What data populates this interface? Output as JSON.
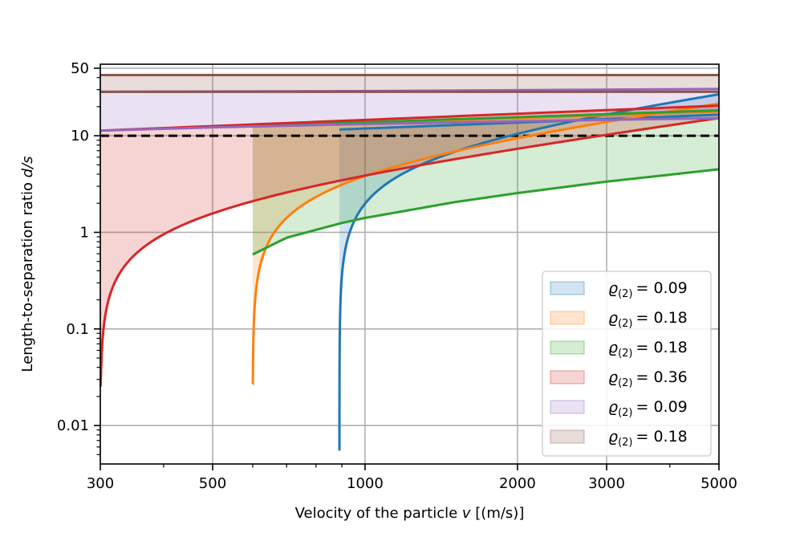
{
  "chart_data": {
    "type": "line",
    "x_scale": "log",
    "y_scale": "log",
    "xlabel_main": "Velocity of the particle ",
    "xlabel_var": "v",
    "xlabel_unit": " [(m/s)]",
    "ylabel_main": "Length-to-separation ratio ",
    "ylabel_var": "d/s",
    "xlim": [
      300,
      5000
    ],
    "ylim": [
      0.004,
      55
    ],
    "x_ticks": [
      300,
      500,
      1000,
      2000,
      3000,
      5000
    ],
    "x_tick_labels": [
      "300",
      "500",
      "1000",
      "2000",
      "3000",
      "5000"
    ],
    "y_ticks": [
      0.01,
      0.1,
      1,
      10,
      50
    ],
    "y_tick_labels": [
      "0.01",
      "0.1",
      "1",
      "10",
      "50"
    ],
    "grid": true,
    "reference_line": {
      "y": 10,
      "style": "dashed",
      "color": "#000000"
    },
    "legend_position": "lower-right",
    "series": [
      {
        "legend_label": "ϱ(2) = 0.09",
        "legend_rho": "ϱ",
        "legend_sub": "(2)",
        "legend_value": "= 0.09",
        "color": "#1f77b4",
        "fill_alpha": 0.2,
        "v_min": 890,
        "k_lower": 9.7,
        "lower_y_at_vmin": 0.0055,
        "upper": [
          [
            890,
            11.6
          ],
          [
            5000,
            16.5
          ]
        ],
        "fill_to": "upper"
      },
      {
        "legend_label": "ϱ(2) = 0.18",
        "legend_rho": "ϱ",
        "legend_sub": "(2)",
        "legend_value": "= 0.18",
        "color": "#ff7f0e",
        "fill_alpha": 0.2,
        "v_min": 600,
        "k_lower": 7.4,
        "lower_y_at_vmin": 0.027,
        "upper": [
          [
            600,
            12.4
          ],
          [
            5000,
            17.8
          ]
        ],
        "fill_to": "upper"
      },
      {
        "legend_label": "ϱ(2) = 0.18",
        "legend_rho": "ϱ",
        "legend_sub": "(2)",
        "legend_value": "= 0.18",
        "color": "#2ca02c",
        "fill_alpha": 0.2,
        "lower": [
          [
            600,
            0.59
          ],
          [
            700,
            0.88
          ],
          [
            900,
            1.25
          ],
          [
            1000,
            1.41
          ],
          [
            1500,
            2.05
          ],
          [
            2000,
            2.55
          ],
          [
            3000,
            3.35
          ],
          [
            4000,
            3.95
          ],
          [
            5000,
            4.5
          ]
        ],
        "upper": [
          [
            600,
            12.6
          ],
          [
            5000,
            18.3
          ]
        ],
        "fill_to": "upper"
      },
      {
        "legend_label": "ϱ(2) = 0.36",
        "legend_rho": "ϱ",
        "legend_sub": "(2)",
        "legend_value": "= 0.36",
        "color": "#d62728",
        "fill_alpha": 0.2,
        "v_min": 300,
        "k_lower": 5.0,
        "lower_y_at_vmin": 0.026,
        "upper": [
          [
            300,
            11.3
          ],
          [
            5000,
            20.5
          ]
        ],
        "fill_to": "upper"
      },
      {
        "legend_label": "ϱ(2) = 0.09",
        "legend_rho": "ϱ",
        "legend_sub": "(2)",
        "legend_value": "= 0.09",
        "color": "#9467bd",
        "fill_alpha": 0.2,
        "lower": [
          [
            300,
            11.3
          ],
          [
            400,
            11.8
          ],
          [
            500,
            12.2
          ],
          [
            700,
            12.7
          ],
          [
            1000,
            13.2
          ],
          [
            2000,
            14.1
          ],
          [
            3000,
            14.6
          ],
          [
            5000,
            15.2
          ]
        ],
        "upper": [
          [
            300,
            28.5
          ],
          [
            1000,
            29.0
          ],
          [
            3000,
            30.0
          ],
          [
            5000,
            30.5
          ]
        ],
        "fill_to": "upper"
      },
      {
        "legend_label": "ϱ(2) = 0.18",
        "legend_rho": "ϱ",
        "legend_sub": "(2)",
        "legend_value": "= 0.18",
        "color": "#8c564b",
        "fill_alpha": 0.2,
        "lower": [
          [
            300,
            28.5
          ],
          [
            5000,
            28.5
          ]
        ],
        "upper": [
          [
            300,
            42.5
          ],
          [
            5000,
            42.5
          ]
        ],
        "fill_to": "upper"
      }
    ]
  }
}
